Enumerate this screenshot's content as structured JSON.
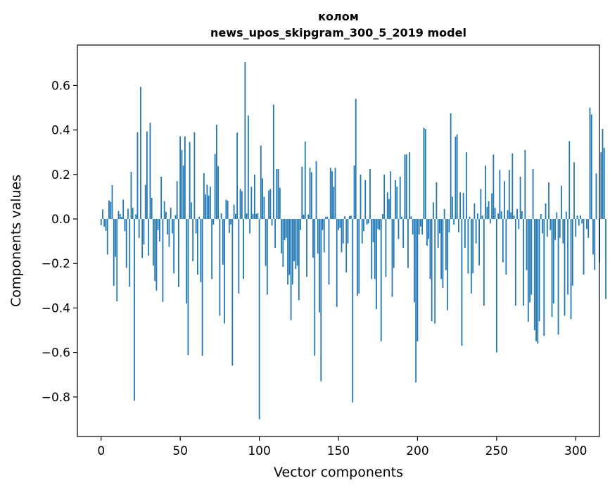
{
  "chart_data": {
    "type": "bar",
    "title_line1": "колом",
    "title_line2": "news_upos_skipgram_300_5_2019 model",
    "xlabel": "Vector components",
    "ylabel": "Components values",
    "xlim": [
      -15,
      315
    ],
    "ylim": [
      -0.9777,
      0.7817
    ],
    "x_ticks": [
      0,
      50,
      100,
      150,
      200,
      250,
      300
    ],
    "y_ticks": [
      0.6,
      0.4,
      0.2,
      0.0,
      -0.2,
      -0.4,
      -0.6,
      -0.8
    ],
    "x_tick_labels": [
      "0",
      "50",
      "100",
      "150",
      "200",
      "250",
      "300"
    ],
    "y_tick_labels": [
      "0.6",
      "0.4",
      "0.2",
      "0.0",
      "−0.2",
      "−0.4",
      "−0.6",
      "−0.8"
    ],
    "series": [
      {
        "name": "колом",
        "color": "#1f77b4",
        "values": [
          -0.029,
          0.043,
          -0.035,
          -0.053,
          -0.16,
          0.083,
          0.077,
          0.152,
          -0.301,
          -0.17,
          -0.37,
          0.036,
          0.022,
          0.01,
          0.087,
          -0.055,
          -0.22,
          0.046,
          -0.305,
          0.212,
          0.05,
          -0.817,
          0.021,
          0.39,
          -0.085,
          0.594,
          -0.175,
          -0.115,
          0.153,
          0.394,
          -0.165,
          0.432,
          0.095,
          -0.21,
          -0.279,
          -0.322,
          -0.05,
          -0.101,
          0.19,
          -0.373,
          0.08,
          0.032,
          -0.07,
          -0.125,
          0.051,
          -0.065,
          -0.245,
          0.017,
          0.17,
          -0.306,
          0.372,
          0.31,
          0.24,
          0.371,
          -0.38,
          -0.612,
          0.346,
          0.075,
          -0.19,
          0.39,
          -0.065,
          -0.25,
          0.01,
          -0.284,
          -0.615,
          0.206,
          0.11,
          0.154,
          0.105,
          0.145,
          -0.27,
          -0.025,
          0.292,
          0.423,
          0.237,
          -0.435,
          0.025,
          -0.205,
          -0.47,
          0.087,
          0.082,
          -0.063,
          -0.025,
          -0.659,
          0.065,
          0.023,
          0.388,
          -0.335,
          0.135,
          0.125,
          -0.27,
          0.706,
          0.025,
          0.465,
          -0.065,
          0.145,
          0.023,
          0.2,
          0.023,
          0.026,
          -0.9,
          0.33,
          0.183,
          0.1,
          -0.211,
          -0.34,
          0.128,
          0.135,
          -0.03,
          0.514,
          -0.13,
          0.225,
          0.225,
          0.14,
          -0.155,
          -0.215,
          -0.095,
          -0.085,
          -0.295,
          -0.252,
          -0.455,
          -0.295,
          -0.19,
          -0.225,
          -0.21,
          -0.365,
          -0.05,
          0.235,
          0.02,
          0.348,
          -0.26,
          0.02,
          0.23,
          0.21,
          -0.174,
          -0.615,
          0.26,
          -0.156,
          -0.42,
          -0.73,
          -0.05,
          -0.15,
          0.01,
          0.01,
          -0.295,
          0.23,
          0.215,
          0.145,
          0.23,
          -0.395,
          -0.05,
          -0.04,
          -0.15,
          -0.11,
          0.012,
          -0.24,
          -0.11,
          0.013,
          0.015,
          -0.825,
          0.24,
          0.54,
          -0.345,
          -0.335,
          0.2,
          -0.11,
          -0.055,
          0.175,
          -0.025,
          -0.02,
          0.225,
          -0.27,
          -0.105,
          -0.27,
          -0.405,
          -0.045,
          -0.05,
          -0.55,
          0.022,
          0.2,
          -0.26,
          0.12,
          0.09,
          0.215,
          -0.35,
          -0.22,
          0.175,
          0.145,
          -0.09,
          0.19,
          0.01,
          -0.13,
          0.29,
          0.29,
          -0.22,
          0.3,
          0.012,
          -0.07,
          -0.375,
          -0.735,
          -0.55,
          -0.07,
          -0.034,
          -0.07,
          0.41,
          0.405,
          -0.12,
          -0.09,
          -0.27,
          -0.46,
          0.075,
          -0.47,
          0.165,
          -0.13,
          -0.065,
          -0.27,
          -0.31,
          0.045,
          -0.23,
          -0.41,
          -0.06,
          0.475,
          0.1,
          -0.025,
          0.37,
          0.38,
          -0.06,
          0.12,
          -0.57,
          0.117,
          -0.13,
          0.3,
          -0.245,
          0.01,
          -0.335,
          -0.245,
          0.07,
          -0.11,
          0.025,
          -0.21,
          0.135,
          0.015,
          -0.39,
          0.24,
          0.055,
          0.08,
          -0.02,
          0.115,
          0.29,
          0.05,
          -0.6,
          0.025,
          0.22,
          0.035,
          -0.195,
          0.17,
          -0.25,
          0.04,
          0.22,
          0.03,
          0.295,
          0.015,
          -0.39,
          0.045,
          -0.045,
          0.19,
          0.035,
          -0.39,
          0.31,
          -0.23,
          -0.462,
          -0.375,
          -0.34,
          0.225,
          -0.5,
          -0.55,
          -0.56,
          -0.46,
          0.022,
          -0.065,
          -0.525,
          0.07,
          -0.08,
          0.165,
          -0.05,
          -0.44,
          -0.38,
          -0.095,
          0.03,
          -0.52,
          -0.085,
          0.15,
          -0.11,
          -0.435,
          0.033,
          -0.34,
          0.35,
          -0.45,
          -0.3,
          0.255,
          -0.08,
          0.015,
          -0.03,
          0.016,
          -0.02,
          -0.25,
          0.0,
          -0.045,
          -0.085,
          0.5,
          0.47,
          -0.16,
          -0.23,
          0.205,
          0.0,
          -0.195,
          0.3,
          0.405,
          0.32,
          -0.36
        ]
      }
    ]
  }
}
